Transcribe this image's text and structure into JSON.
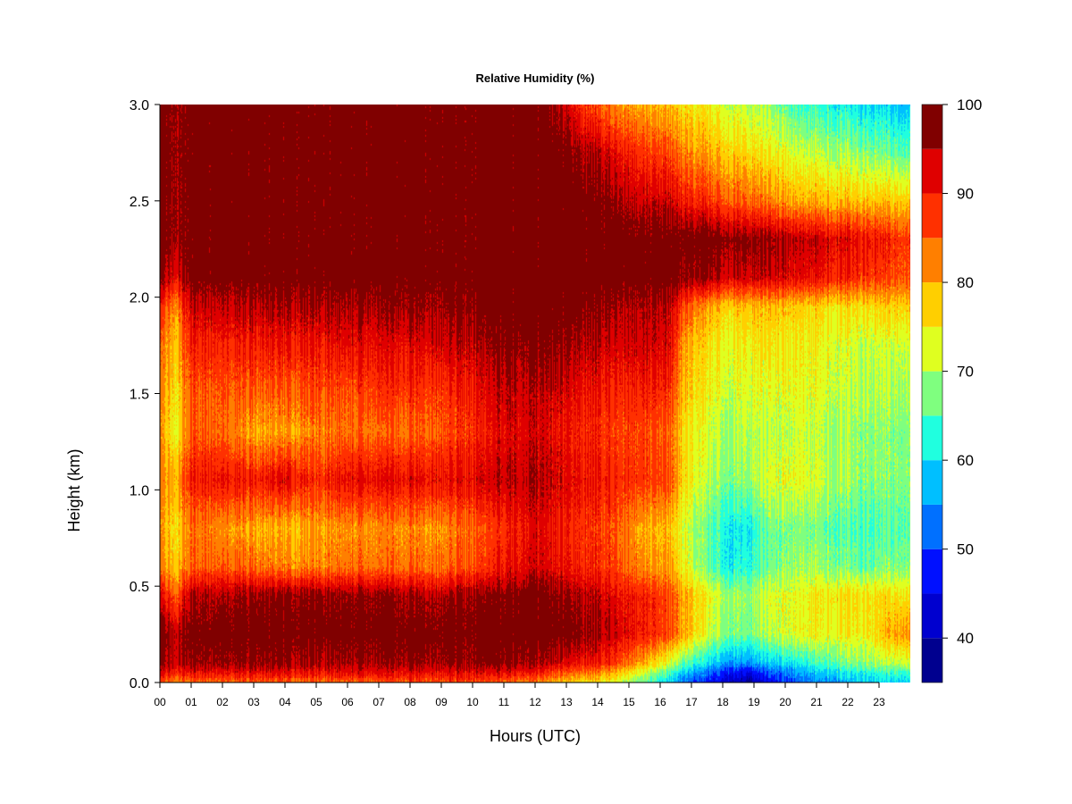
{
  "chart_data": {
    "type": "heatmap",
    "title": "Relative Humidity (%)",
    "xlabel": "Hours (UTC)",
    "ylabel": "Height (km)",
    "x_ticks": [
      "00",
      "01",
      "02",
      "03",
      "04",
      "05",
      "06",
      "07",
      "08",
      "09",
      "10",
      "11",
      "12",
      "13",
      "14",
      "15",
      "16",
      "17",
      "18",
      "19",
      "20",
      "21",
      "22",
      "23"
    ],
    "x_range": [
      0,
      24
    ],
    "y_ticks": [
      "0.0",
      "0.5",
      "1.0",
      "1.5",
      "2.0",
      "2.5",
      "3.0"
    ],
    "y_range": [
      0,
      3.0
    ],
    "colorbar": {
      "range": [
        35,
        100
      ],
      "tick_labels": [
        "40",
        "50",
        "60",
        "70",
        "80",
        "90",
        "100"
      ],
      "tick_values": [
        40,
        50,
        60,
        70,
        80,
        90,
        100
      ],
      "levels": [
        35,
        40,
        45,
        50,
        55,
        60,
        65,
        70,
        75,
        80,
        85,
        90,
        95,
        100
      ],
      "colors": [
        "#00008f",
        "#0000cf",
        "#0010ff",
        "#0070ff",
        "#00bfff",
        "#20ffdf",
        "#7fff7f",
        "#dfff20",
        "#ffcf00",
        "#ff7f00",
        "#ff3000",
        "#df0000",
        "#800000"
      ]
    },
    "grid": false,
    "data": {
      "hours": [
        0,
        0.5,
        1,
        2,
        3,
        4,
        5,
        6,
        7,
        8,
        9,
        10,
        11,
        12,
        12.7,
        13.5,
        14.5,
        15.5,
        16.3,
        16.8,
        17.5,
        18.2,
        18.8,
        19.5,
        20.5,
        21.5,
        22.5,
        23.8
      ],
      "heights": [
        0.0,
        0.05,
        0.1,
        0.25,
        0.45,
        0.6,
        0.8,
        1.05,
        1.3,
        1.5,
        1.75,
        1.95,
        2.1,
        2.3,
        2.5,
        2.75,
        3.0
      ],
      "rh": [
        [
          85,
          82,
          84,
          85,
          85,
          84,
          83,
          85,
          85,
          86,
          86,
          86,
          84,
          82,
          78,
          76,
          74,
          66,
          58,
          52,
          47,
          43,
          38,
          45,
          52,
          55,
          58,
          60
        ],
        [
          92,
          90,
          92,
          92,
          92,
          91,
          90,
          92,
          92,
          92,
          92,
          92,
          92,
          90,
          86,
          84,
          80,
          72,
          64,
          58,
          52,
          48,
          44,
          50,
          56,
          60,
          62,
          64
        ],
        [
          96,
          94,
          97,
          97,
          97,
          96,
          95,
          96,
          96,
          97,
          97,
          97,
          97,
          95,
          93,
          91,
          88,
          80,
          72,
          66,
          60,
          56,
          54,
          58,
          62,
          66,
          68,
          72
        ],
        [
          98,
          95,
          99,
          99,
          99,
          99,
          99,
          99,
          99,
          99,
          99,
          99,
          99,
          99,
          99,
          97,
          94,
          90,
          86,
          80,
          72,
          68,
          66,
          70,
          74,
          74,
          74,
          82
        ],
        [
          92,
          85,
          96,
          96,
          97,
          97,
          97,
          97,
          97,
          96,
          96,
          97,
          97,
          99,
          97,
          95,
          92,
          90,
          86,
          80,
          74,
          70,
          68,
          72,
          74,
          76,
          76,
          76
        ],
        [
          82,
          78,
          85,
          86,
          84,
          82,
          82,
          84,
          84,
          84,
          84,
          86,
          90,
          93,
          91,
          89,
          87,
          82,
          80,
          74,
          66,
          62,
          62,
          66,
          70,
          68,
          66,
          68
        ],
        [
          80,
          76,
          84,
          82,
          80,
          78,
          80,
          82,
          82,
          82,
          82,
          84,
          88,
          92,
          90,
          88,
          86,
          80,
          78,
          72,
          66,
          62,
          60,
          66,
          68,
          66,
          64,
          66
        ],
        [
          82,
          80,
          90,
          92,
          90,
          92,
          88,
          92,
          92,
          92,
          92,
          92,
          94,
          95,
          93,
          91,
          89,
          88,
          86,
          76,
          70,
          68,
          68,
          72,
          74,
          70,
          68,
          68
        ],
        [
          80,
          74,
          86,
          85,
          80,
          80,
          82,
          84,
          84,
          84,
          86,
          88,
          92,
          93,
          91,
          89,
          87,
          87,
          84,
          76,
          72,
          70,
          70,
          70,
          72,
          70,
          68,
          68
        ],
        [
          82,
          76,
          86,
          86,
          85,
          84,
          86,
          86,
          88,
          88,
          88,
          90,
          94,
          94,
          93,
          91,
          89,
          90,
          88,
          78,
          74,
          72,
          72,
          72,
          74,
          72,
          70,
          70
        ],
        [
          84,
          78,
          90,
          90,
          90,
          90,
          90,
          92,
          92,
          92,
          94,
          94,
          97,
          97,
          97,
          95,
          93,
          94,
          92,
          80,
          76,
          74,
          74,
          75,
          75,
          73,
          71,
          72
        ],
        [
          88,
          82,
          94,
          95,
          95,
          95,
          95,
          96,
          96,
          97,
          97,
          98,
          99,
          99,
          99,
          98,
          96,
          96,
          94,
          86,
          80,
          78,
          78,
          78,
          78,
          76,
          76,
          78
        ],
        [
          96,
          92,
          99,
          99,
          99,
          99,
          99,
          99,
          99,
          99,
          99,
          99,
          99,
          99,
          99,
          99,
          99,
          99,
          99,
          97,
          96,
          94,
          93,
          93,
          92,
          90,
          88,
          86
        ],
        [
          99,
          97,
          99,
          99,
          99,
          99,
          99,
          99,
          99,
          99,
          99,
          99,
          99,
          99,
          99,
          99,
          99,
          99,
          99,
          99,
          99,
          98,
          97,
          96,
          95,
          93,
          91,
          88
        ],
        [
          99,
          97,
          99,
          99,
          99,
          99,
          99,
          99,
          99,
          99,
          99,
          99,
          99,
          99,
          99,
          99,
          97,
          94,
          93,
          90,
          88,
          86,
          84,
          82,
          80,
          79,
          78,
          78
        ],
        [
          99,
          97,
          99,
          99,
          99,
          99,
          99,
          99,
          99,
          99,
          99,
          99,
          99,
          99,
          99,
          96,
          92,
          88,
          86,
          82,
          80,
          78,
          76,
          74,
          72,
          70,
          68,
          66
        ],
        [
          99,
          97,
          99,
          99,
          99,
          99,
          99,
          99,
          99,
          99,
          99,
          99,
          99,
          99,
          96,
          88,
          82,
          80,
          78,
          76,
          74,
          72,
          70,
          68,
          64,
          62,
          60,
          58
        ]
      ]
    }
  },
  "colors": {
    "background": "#ffffff",
    "axis": "#000000"
  }
}
